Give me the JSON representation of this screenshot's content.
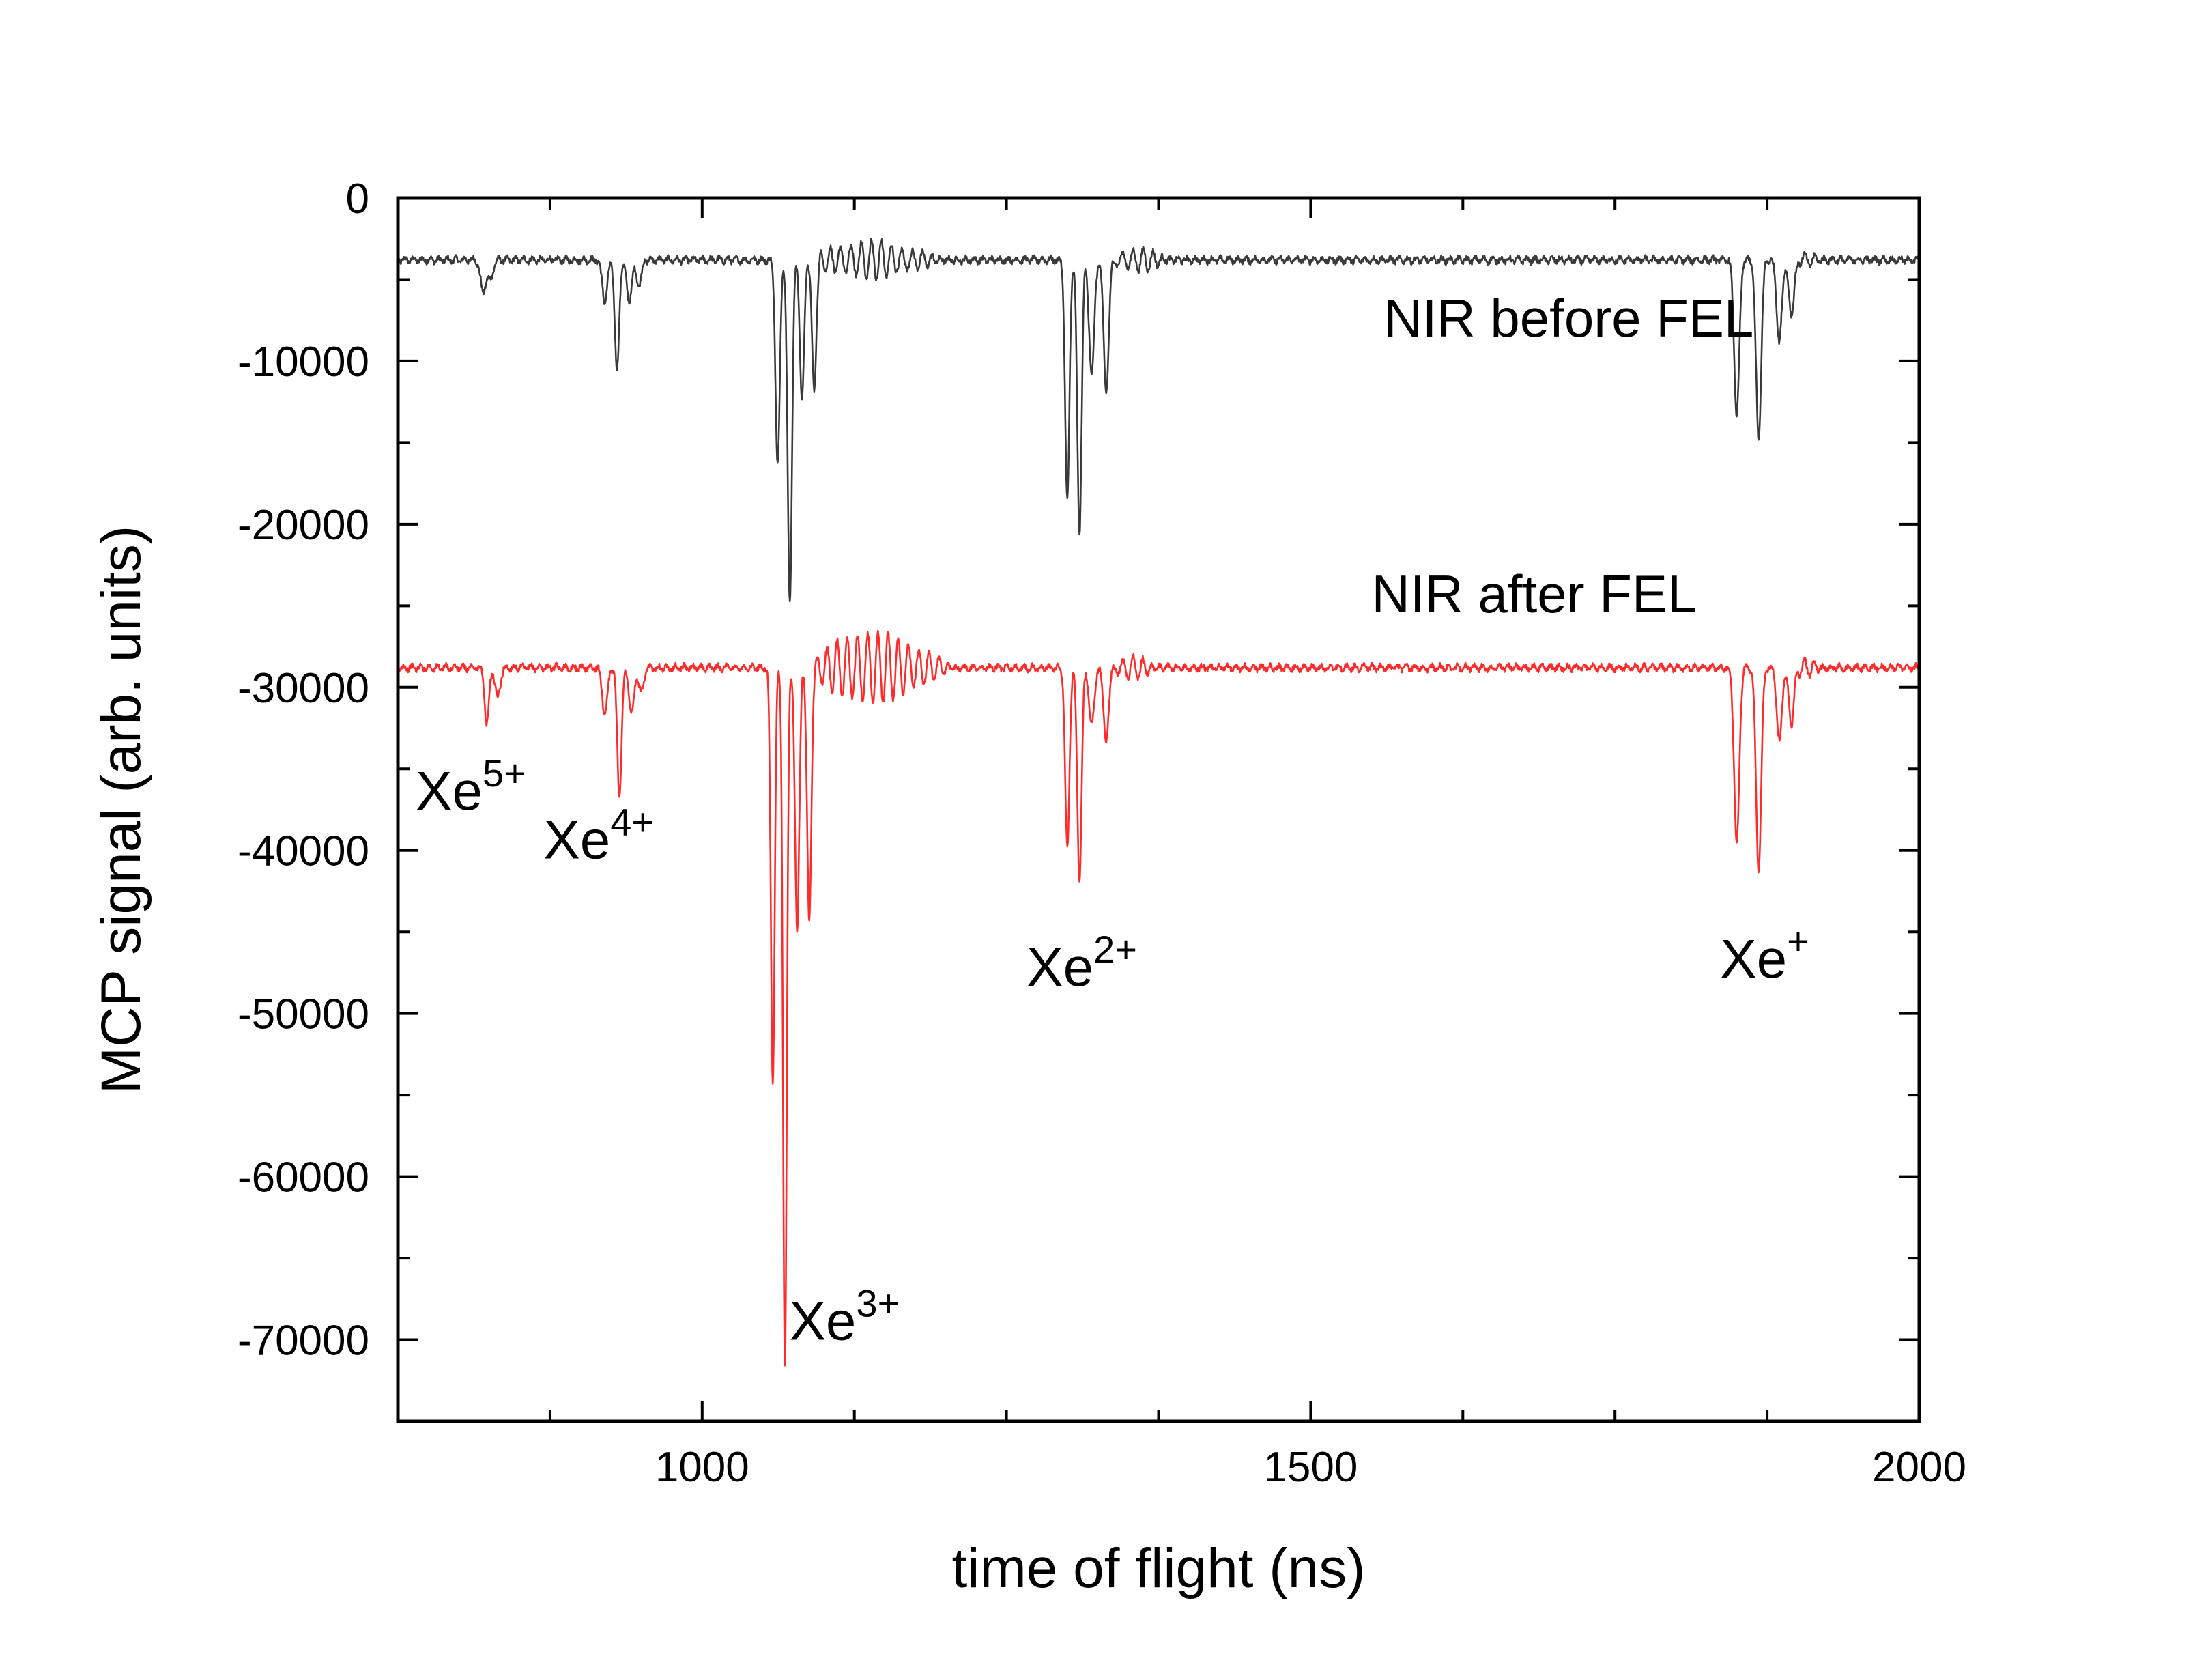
{
  "chart_data": {
    "type": "line",
    "title": "",
    "xlabel": "time of flight (ns)",
    "ylabel": "MCP signal (arb. units)",
    "xlim": [
      750,
      2000
    ],
    "ylim": [
      -75000,
      0
    ],
    "x_ticks": [
      {
        "value": 1000,
        "label": "1000"
      },
      {
        "value": 1500,
        "label": "1500"
      },
      {
        "value": 2000,
        "label": "2000"
      }
    ],
    "y_ticks": [
      {
        "value": 0,
        "label": "0"
      },
      {
        "value": -10000,
        "label": "-10000"
      },
      {
        "value": -20000,
        "label": "-20000"
      },
      {
        "value": -30000,
        "label": "-30000"
      },
      {
        "value": -40000,
        "label": "-40000"
      },
      {
        "value": -50000,
        "label": "-50000"
      },
      {
        "value": -60000,
        "label": "-60000"
      },
      {
        "value": -70000,
        "label": "-70000"
      }
    ],
    "series": [
      {
        "name": "NIR before FEL",
        "color": "#3a3a3a",
        "baseline": -3800,
        "peaks": [
          {
            "x": 820,
            "depth": -2000,
            "width": 3
          },
          {
            "x": 826,
            "depth": -1200,
            "width": 3
          },
          {
            "x": 920,
            "depth": -2500,
            "width": 3
          },
          {
            "x": 930,
            "depth": -6800,
            "width": 2.5
          },
          {
            "x": 940,
            "depth": -2500,
            "width": 3
          },
          {
            "x": 948,
            "depth": -1500,
            "width": 3
          },
          {
            "x": 1062,
            "depth": -12500,
            "width": 2.5
          },
          {
            "x": 1072,
            "depth": -21000,
            "width": 2.5
          },
          {
            "x": 1082,
            "depth": -8500,
            "width": 2.5
          },
          {
            "x": 1092,
            "depth": -8000,
            "width": 2.5
          },
          {
            "x": 1300,
            "depth": -14800,
            "width": 2.5
          },
          {
            "x": 1310,
            "depth": -16800,
            "width": 2.5
          },
          {
            "x": 1320,
            "depth": -7000,
            "width": 3
          },
          {
            "x": 1332,
            "depth": -8000,
            "width": 3
          },
          {
            "x": 1850,
            "depth": -9500,
            "width": 3
          },
          {
            "x": 1868,
            "depth": -11000,
            "width": 3
          },
          {
            "x": 1885,
            "depth": -5000,
            "width": 3
          },
          {
            "x": 1895,
            "depth": -3500,
            "width": 3
          }
        ],
        "ringing": [
          {
            "start": 1095,
            "end": 1270,
            "amp": 1300
          },
          {
            "start": 1335,
            "end": 1420,
            "amp": 800
          },
          {
            "start": 1895,
            "end": 1935,
            "amp": 500
          }
        ]
      },
      {
        "name": "NIR after FEL",
        "color": "#ff2a2a",
        "baseline": -28800,
        "peaks": [
          {
            "x": 823,
            "depth": -3500,
            "width": 2.5
          },
          {
            "x": 832,
            "depth": -1800,
            "width": 3
          },
          {
            "x": 920,
            "depth": -2800,
            "width": 3
          },
          {
            "x": 932,
            "depth": -7800,
            "width": 2.5
          },
          {
            "x": 942,
            "depth": -2800,
            "width": 3
          },
          {
            "x": 950,
            "depth": -1500,
            "width": 3
          },
          {
            "x": 1058,
            "depth": -25500,
            "width": 2.2
          },
          {
            "x": 1068,
            "depth": -43000,
            "width": 2.2
          },
          {
            "x": 1078,
            "depth": -16000,
            "width": 2.5
          },
          {
            "x": 1088,
            "depth": -15500,
            "width": 2.5
          },
          {
            "x": 1300,
            "depth": -11000,
            "width": 2.5
          },
          {
            "x": 1310,
            "depth": -13000,
            "width": 2.5
          },
          {
            "x": 1320,
            "depth": -3500,
            "width": 3
          },
          {
            "x": 1332,
            "depth": -4500,
            "width": 3
          },
          {
            "x": 1850,
            "depth": -10800,
            "width": 3
          },
          {
            "x": 1868,
            "depth": -12300,
            "width": 3
          },
          {
            "x": 1885,
            "depth": -4500,
            "width": 3
          },
          {
            "x": 1895,
            "depth": -3500,
            "width": 3
          }
        ],
        "ringing": [
          {
            "start": 1092,
            "end": 1290,
            "amp": 2500
          },
          {
            "start": 1335,
            "end": 1400,
            "amp": 800
          },
          {
            "start": 1895,
            "end": 1935,
            "amp": 600
          }
        ]
      }
    ],
    "annotations": [
      {
        "text": "NIR before FEL",
        "x": 1560,
        "y": -8500
      },
      {
        "text": "NIR after FEL",
        "x": 1550,
        "y": -25400
      }
    ],
    "ion_labels": [
      {
        "base": "Xe",
        "sup": "5+",
        "x": 810,
        "y": -37500
      },
      {
        "base": "Xe",
        "sup": "4+",
        "x": 915,
        "y": -40500
      },
      {
        "base": "Xe",
        "sup": "3+",
        "x": 1117,
        "y": -70000
      },
      {
        "base": "Xe",
        "sup": "2+",
        "x": 1312,
        "y": -48300
      },
      {
        "base": "Xe",
        "sup": "+",
        "x": 1873,
        "y": -47800
      }
    ]
  }
}
